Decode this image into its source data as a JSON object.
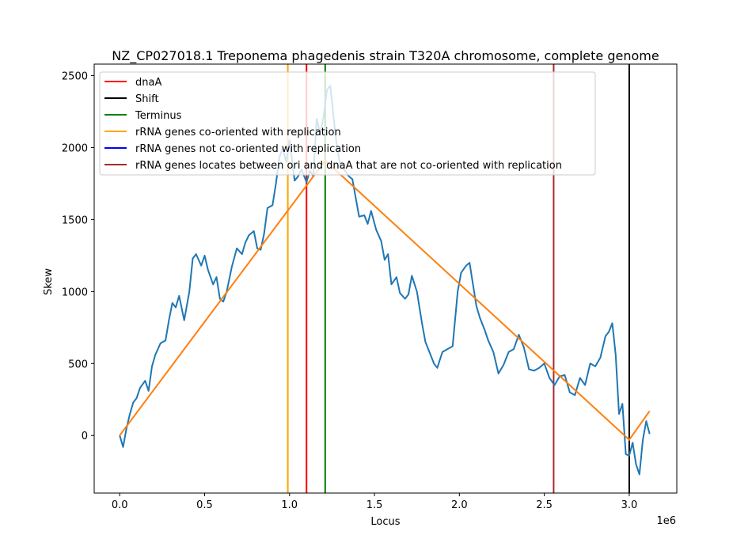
{
  "chart_data": {
    "type": "line",
    "title": "NZ_CP027018.1 Treponema phagedenis strain T320A chromosome, complete genome",
    "xlabel": "Locus",
    "ylabel": "Skew",
    "x_offset_text": "1e6",
    "xlim": [
      -150000,
      3280000
    ],
    "ylim": [
      -400,
      2580
    ],
    "x_ticks": [
      0,
      500000,
      1000000,
      1500000,
      2000000,
      2500000,
      3000000
    ],
    "x_tick_labels": [
      "0.0",
      "0.5",
      "1.0",
      "1.5",
      "2.0",
      "2.5",
      "3.0"
    ],
    "y_ticks": [
      0,
      500,
      1000,
      1500,
      2000,
      2500
    ],
    "y_tick_labels": [
      "0",
      "500",
      "1000",
      "1500",
      "2000",
      "2500"
    ],
    "legend_position": "top-left",
    "skew_series": {
      "color": "#1f77b4",
      "x": [
        0,
        20000,
        40000,
        60000,
        80000,
        100000,
        120000,
        150000,
        170000,
        190000,
        210000,
        240000,
        270000,
        290000,
        310000,
        330000,
        350000,
        380000,
        410000,
        430000,
        450000,
        480000,
        500000,
        520000,
        550000,
        570000,
        590000,
        610000,
        630000,
        660000,
        690000,
        720000,
        740000,
        760000,
        790000,
        810000,
        830000,
        850000,
        870000,
        900000,
        920000,
        940000,
        960000,
        980000,
        1000000,
        1030000,
        1050000,
        1070000,
        1100000,
        1120000,
        1140000,
        1160000,
        1180000,
        1200000,
        1220000,
        1240000,
        1260000,
        1280000,
        1300000,
        1320000,
        1350000,
        1370000,
        1390000,
        1410000,
        1440000,
        1460000,
        1480000,
        1510000,
        1540000,
        1560000,
        1580000,
        1600000,
        1630000,
        1650000,
        1680000,
        1700000,
        1720000,
        1750000,
        1780000,
        1800000,
        1830000,
        1850000,
        1870000,
        1900000,
        1930000,
        1960000,
        1990000,
        2010000,
        2040000,
        2060000,
        2080000,
        2100000,
        2120000,
        2150000,
        2170000,
        2200000,
        2230000,
        2260000,
        2290000,
        2320000,
        2350000,
        2380000,
        2410000,
        2440000,
        2470000,
        2500000,
        2530000,
        2560000,
        2590000,
        2620000,
        2650000,
        2680000,
        2710000,
        2740000,
        2770000,
        2800000,
        2830000,
        2860000,
        2880000,
        2900000,
        2920000,
        2940000,
        2960000,
        2980000,
        3000000,
        3020000,
        3040000,
        3060000,
        3080000,
        3100000,
        3120000
      ],
      "y": [
        0,
        -80,
        50,
        150,
        230,
        260,
        330,
        380,
        310,
        480,
        560,
        640,
        660,
        800,
        920,
        890,
        970,
        800,
        1000,
        1230,
        1260,
        1180,
        1250,
        1150,
        1050,
        1100,
        950,
        930,
        1000,
        1170,
        1300,
        1260,
        1340,
        1390,
        1420,
        1300,
        1290,
        1400,
        1580,
        1600,
        1750,
        1930,
        2000,
        1900,
        2050,
        1770,
        1800,
        1850,
        1760,
        1840,
        1800,
        2200,
        2100,
        2210,
        2400,
        2430,
        2200,
        2000,
        1870,
        1850,
        1800,
        1780,
        1650,
        1520,
        1530,
        1470,
        1560,
        1430,
        1350,
        1220,
        1260,
        1050,
        1100,
        990,
        950,
        980,
        1110,
        1000,
        780,
        650,
        560,
        500,
        470,
        580,
        600,
        620,
        1000,
        1130,
        1180,
        1200,
        1050,
        900,
        820,
        730,
        660,
        580,
        430,
        490,
        580,
        600,
        700,
        610,
        460,
        450,
        470,
        500,
        400,
        350,
        410,
        420,
        300,
        280,
        400,
        350,
        500,
        480,
        540,
        690,
        720,
        780,
        560,
        150,
        220,
        -130,
        -140,
        -50,
        -200,
        -270,
        -30,
        100,
        10
      ]
    },
    "fit_series": {
      "color": "#ff7f0e",
      "x": [
        0,
        1210000,
        3000000,
        3120000
      ],
      "y": [
        0,
        1910,
        -30,
        170
      ]
    },
    "vertical_lines": [
      {
        "label": "dnaA",
        "x": 1100000,
        "color": "#ff0000"
      },
      {
        "label": "Shift",
        "x": 3000000,
        "color": "#000000"
      },
      {
        "label": "Terminus",
        "x": 1210000,
        "color": "#008000"
      },
      {
        "label": "rRNA genes co-oriented with replication",
        "x": 990000,
        "color": "#ffa500"
      },
      {
        "label": "rRNA genes not co-oriented with replication",
        "x": null,
        "color": "#0000ff"
      },
      {
        "label": "rRNA genes locates between ori and dnaA that are not co-oriented with replication",
        "x": 2555000,
        "color": "#a52a2a"
      }
    ]
  }
}
